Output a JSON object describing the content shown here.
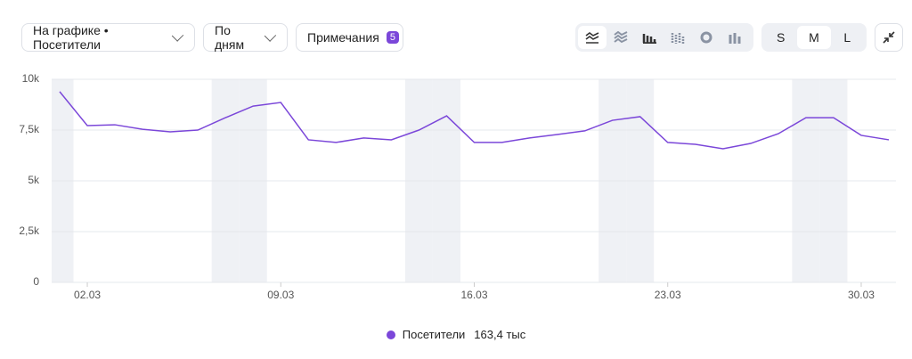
{
  "toolbar": {
    "metric_select": "На графике • Посетители",
    "period_select": "По дням",
    "notes": "Примечания",
    "notes_count": "5",
    "sizes": [
      "S",
      "M",
      "L"
    ],
    "active_size": 1
  },
  "chart_data": {
    "type": "line",
    "categories": [
      null,
      "02.03",
      null,
      null,
      null,
      null,
      null,
      null,
      "09.03",
      null,
      null,
      null,
      null,
      null,
      null,
      "16.03",
      null,
      null,
      null,
      null,
      null,
      null,
      "23.03",
      null,
      null,
      null,
      null,
      null,
      null,
      "30.03",
      null
    ],
    "series": [
      {
        "name": "Посетители",
        "color": "#7b47d9",
        "values": [
          9390,
          7720,
          7760,
          7540,
          7410,
          7500,
          8110,
          8680,
          8860,
          7020,
          6890,
          7110,
          7020,
          7500,
          8200,
          6890,
          6890,
          7110,
          7280,
          7460,
          7980,
          8160,
          6890,
          6800,
          6580,
          6840,
          7320,
          8110,
          8110,
          7240,
          7020
        ]
      }
    ],
    "legend_total": "163,4 тыс",
    "highlighted_categories": [
      0,
      6,
      7,
      13,
      14,
      20,
      21,
      27,
      28
    ],
    "ylim": [
      0,
      10000
    ],
    "yticks": [
      0,
      {
        "value": 2500,
        "label": "2,5k"
      },
      {
        "value": 5000,
        "label": "5k"
      },
      {
        "value": 7500,
        "label": "7,5k"
      },
      {
        "value": 10000,
        "label": "10k"
      }
    ],
    "grid": true
  }
}
